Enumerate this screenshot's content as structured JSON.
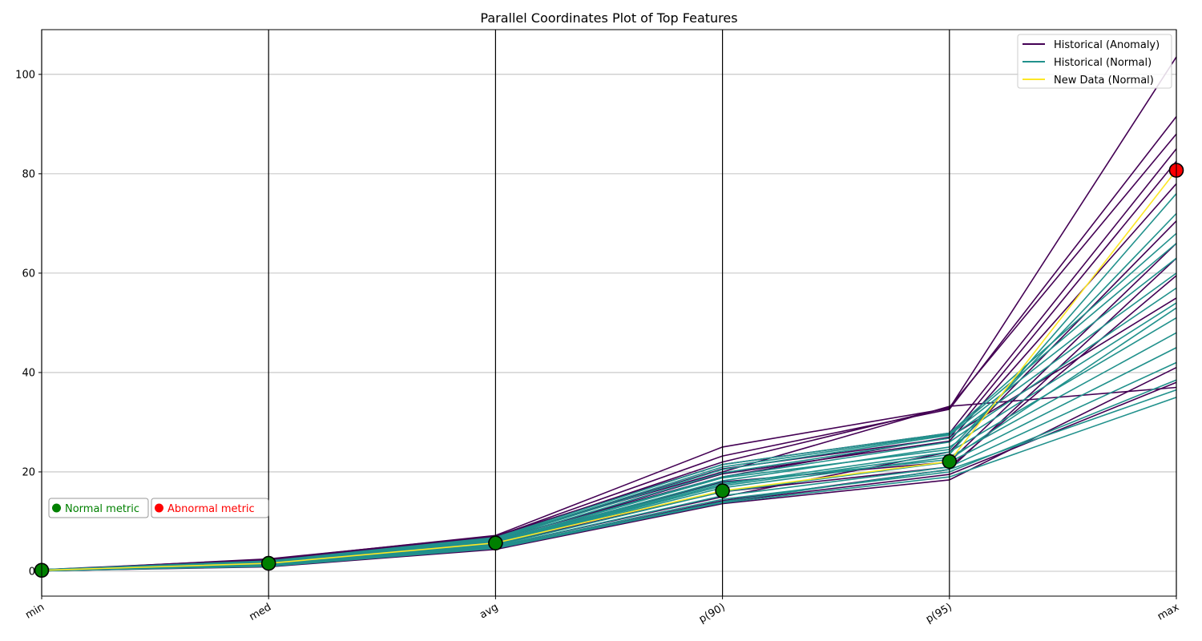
{
  "chart_data": {
    "type": "line",
    "title": "Parallel Coordinates Plot of Top Features",
    "xlabel": "",
    "ylabel": "",
    "categories": [
      "min",
      "med",
      "avg",
      "p(90)",
      "p(95)",
      "max"
    ],
    "y_ticks": [
      0,
      20,
      40,
      60,
      80,
      100
    ],
    "ylim": [
      -5,
      109
    ],
    "grid": "horizontal",
    "legend_position": "top-right",
    "colors": {
      "anomaly": "#440154",
      "normal": "#21918c",
      "new": "#fde725",
      "normal_metric": "#008000",
      "abnormal_metric": "#ff0000"
    },
    "series": [
      {
        "name": "Historical (Anomaly)",
        "color": "#440154",
        "lines": [
          [
            0.3,
            2.4,
            7.2,
            25.0,
            32.8,
            103.5
          ],
          [
            0.2,
            2.2,
            7.0,
            23.2,
            32.6,
            91.5
          ],
          [
            0.3,
            2.0,
            6.8,
            22.0,
            33.0,
            88.0
          ],
          [
            0.2,
            2.5,
            7.1,
            21.5,
            27.8,
            85.0
          ],
          [
            0.3,
            1.9,
            6.6,
            20.6,
            26.8,
            82.5
          ],
          [
            0.2,
            1.6,
            6.2,
            19.6,
            26.2,
            78.0
          ],
          [
            0.1,
            1.2,
            5.0,
            15.0,
            24.0,
            70.5
          ],
          [
            0.2,
            1.5,
            6.0,
            18.0,
            22.0,
            66.0
          ],
          [
            0.1,
            1.0,
            4.6,
            14.2,
            20.5,
            63.0
          ],
          [
            0.2,
            1.4,
            5.4,
            16.0,
            21.0,
            59.5
          ],
          [
            0.1,
            0.9,
            4.4,
            13.6,
            18.4,
            41.0
          ],
          [
            0.1,
            1.1,
            4.5,
            14.0,
            19.5,
            38.0
          ],
          [
            0.2,
            2.3,
            6.9,
            20.0,
            33.2,
            37.0
          ],
          [
            0.2,
            1.8,
            6.4,
            19.0,
            27.0,
            55.0
          ]
        ]
      },
      {
        "name": "Historical (Normal)",
        "color": "#21918c",
        "lines": [
          [
            0.1,
            1.0,
            4.6,
            13.8,
            19.0,
            35.0
          ],
          [
            0.1,
            1.1,
            4.8,
            14.5,
            20.0,
            38.5
          ],
          [
            0.1,
            1.2,
            5.0,
            15.2,
            21.0,
            42.0
          ],
          [
            0.2,
            1.3,
            5.2,
            16.0,
            22.0,
            45.0
          ],
          [
            0.2,
            1.4,
            5.4,
            16.8,
            23.0,
            48.0
          ],
          [
            0.2,
            1.5,
            5.6,
            17.5,
            24.0,
            51.0
          ],
          [
            0.2,
            1.6,
            5.8,
            18.2,
            25.0,
            54.0
          ],
          [
            0.2,
            1.7,
            6.0,
            19.0,
            26.0,
            57.0
          ],
          [
            0.3,
            1.8,
            6.2,
            19.8,
            26.8,
            60.0
          ],
          [
            0.3,
            1.9,
            6.4,
            20.5,
            27.4,
            63.0
          ],
          [
            0.3,
            2.0,
            6.6,
            21.0,
            27.6,
            66.0
          ],
          [
            0.3,
            2.1,
            6.8,
            21.5,
            27.8,
            68.0
          ],
          [
            0.2,
            1.6,
            5.9,
            18.8,
            24.5,
            72.0
          ],
          [
            0.2,
            1.4,
            5.5,
            17.2,
            23.5,
            76.0
          ],
          [
            0.1,
            1.1,
            4.7,
            14.0,
            20.5,
            36.5
          ],
          [
            0.2,
            1.5,
            5.7,
            17.8,
            22.5,
            53.0
          ]
        ]
      },
      {
        "name": "New Data (Normal)",
        "color": "#fde725",
        "lines": [
          [
            0.2,
            1.6,
            5.7,
            16.2,
            22.1,
            80.7
          ]
        ]
      }
    ],
    "markers": [
      {
        "axis": "min",
        "value": 0.2,
        "status": "normal"
      },
      {
        "axis": "med",
        "value": 1.6,
        "status": "normal"
      },
      {
        "axis": "avg",
        "value": 5.7,
        "status": "normal"
      },
      {
        "axis": "p(90)",
        "value": 16.2,
        "status": "normal"
      },
      {
        "axis": "p(95)",
        "value": 22.1,
        "status": "normal"
      },
      {
        "axis": "max",
        "value": 80.7,
        "status": "abnormal"
      }
    ],
    "metric_legend": {
      "normal": "Normal metric",
      "abnormal": "Abnormal metric"
    }
  }
}
